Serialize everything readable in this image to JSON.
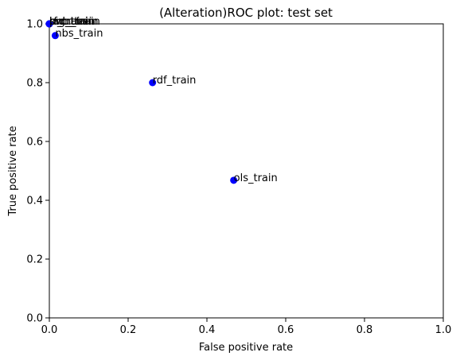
{
  "chart_data": {
    "type": "scatter",
    "title": "(Alteration)ROC plot: test set",
    "xlabel": "False positive rate",
    "ylabel": "True positive rate",
    "xlim": [
      0,
      1
    ],
    "ylim": [
      0,
      1
    ],
    "xticks": [
      0.0,
      0.2,
      0.4,
      0.6,
      0.8,
      1.0
    ],
    "yticks": [
      0.0,
      0.2,
      0.4,
      0.6,
      0.8,
      1.0
    ],
    "xtick_labels": [
      "0.0",
      "0.2",
      "0.4",
      "0.6",
      "0.8",
      "1.0"
    ],
    "ytick_labels": [
      "0.0",
      "0.2",
      "0.4",
      "0.6",
      "0.8",
      "1.0"
    ],
    "grid": false,
    "marker_color": "#0000ff",
    "points": [
      {
        "label": "svm_train",
        "x": 0.0,
        "y": 1.0
      },
      {
        "label": "log_train",
        "x": 0.0,
        "y": 1.0
      },
      {
        "label": "rf_train",
        "x": 0.0,
        "y": 1.0
      },
      {
        "label": "bnb_train",
        "x": 0.0,
        "y": 1.0
      },
      {
        "label": "prc_train",
        "x": 0.0,
        "y": 1.0
      },
      {
        "label": "nbs_train",
        "x": 0.015,
        "y": 0.96
      },
      {
        "label": "rdf_train",
        "x": 0.262,
        "y": 0.8
      },
      {
        "label": "ols_train",
        "x": 0.468,
        "y": 0.468
      }
    ]
  }
}
